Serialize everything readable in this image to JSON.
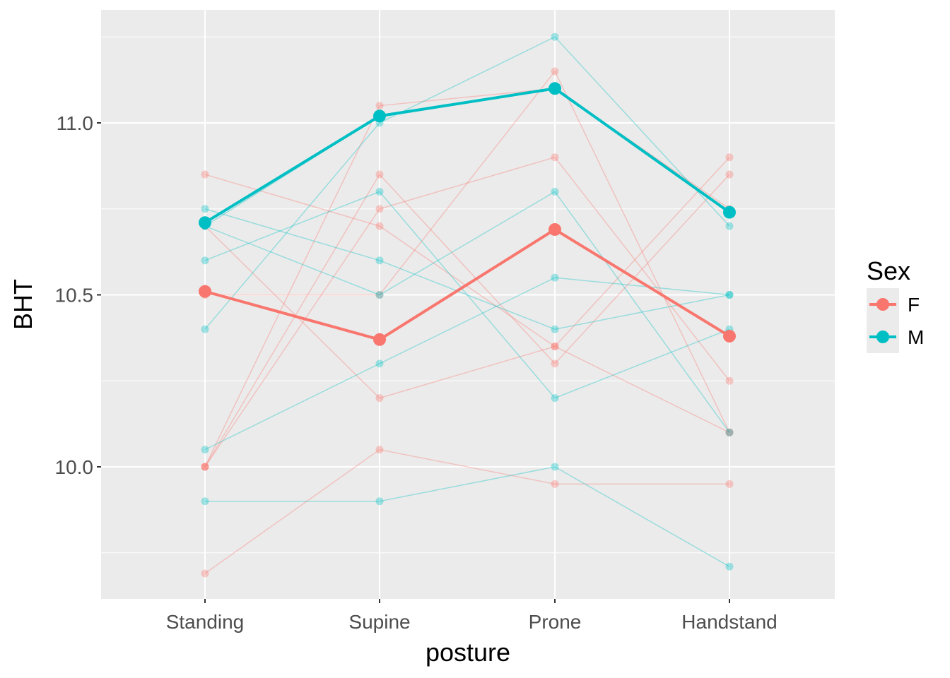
{
  "chart_data": {
    "type": "line",
    "title": "",
    "xlabel": "posture",
    "ylabel": "BHT",
    "categories": [
      "Standing",
      "Supine",
      "Prone",
      "Handstand"
    ],
    "ylim": [
      9.63,
      11.26
    ],
    "yticks": [
      10.0,
      10.5,
      11.0
    ],
    "ytick_labels": [
      "10.0",
      "10.5",
      "11.0"
    ],
    "grid": true,
    "legend": {
      "title": "Sex",
      "position": "right",
      "entries": [
        {
          "label": "F",
          "color": "#F8766D"
        },
        {
          "label": "M",
          "color": "#00BFC4"
        }
      ]
    },
    "series": [
      {
        "name": "F",
        "role": "mean",
        "color": "#F8766D",
        "values": [
          10.51,
          10.37,
          10.69,
          10.38
        ]
      },
      {
        "name": "M",
        "role": "mean",
        "color": "#00BFC4",
        "values": [
          10.71,
          11.02,
          11.1,
          10.74
        ]
      }
    ],
    "individuals": [
      {
        "sex": "F",
        "color": "#F8766D",
        "values": [
          10.85,
          10.7,
          10.35,
          10.1
        ]
      },
      {
        "sex": "F",
        "color": "#F8766D",
        "values": [
          10.7,
          10.2,
          10.35,
          10.9
        ]
      },
      {
        "sex": "F",
        "color": "#F8766D",
        "values": [
          10.0,
          11.05,
          11.1,
          10.75
        ]
      },
      {
        "sex": "F",
        "color": "#F8766D",
        "values": [
          10.0,
          10.75,
          10.9,
          10.25
        ]
      },
      {
        "sex": "F",
        "color": "#F8766D",
        "values": [
          10.0,
          10.85,
          10.3,
          10.85
        ]
      },
      {
        "sex": "F",
        "color": "#F8766D",
        "values": [
          10.5,
          10.5,
          11.15,
          10.1
        ]
      },
      {
        "sex": "F",
        "color": "#F8766D",
        "values": [
          9.69,
          10.05,
          9.95,
          9.95
        ]
      },
      {
        "sex": "M",
        "color": "#00BFC4",
        "values": [
          10.75,
          10.6,
          10.4,
          10.5
        ]
      },
      {
        "sex": "M",
        "color": "#00BFC4",
        "values": [
          10.6,
          10.8,
          10.2,
          10.4
        ]
      },
      {
        "sex": "M",
        "color": "#00BFC4",
        "values": [
          10.4,
          11.0,
          11.25,
          10.7
        ]
      },
      {
        "sex": "M",
        "color": "#00BFC4",
        "values": [
          10.7,
          10.5,
          10.8,
          10.1
        ]
      },
      {
        "sex": "M",
        "color": "#00BFC4",
        "values": [
          10.05,
          10.3,
          10.55,
          10.5
        ]
      },
      {
        "sex": "M",
        "color": "#00BFC4",
        "values": [
          9.9,
          9.9,
          10.0,
          9.71
        ]
      },
      {
        "sex": "M",
        "color": "#00BFC4",
        "values": [
          10.7,
          11.02,
          11.1,
          10.74
        ]
      }
    ]
  }
}
